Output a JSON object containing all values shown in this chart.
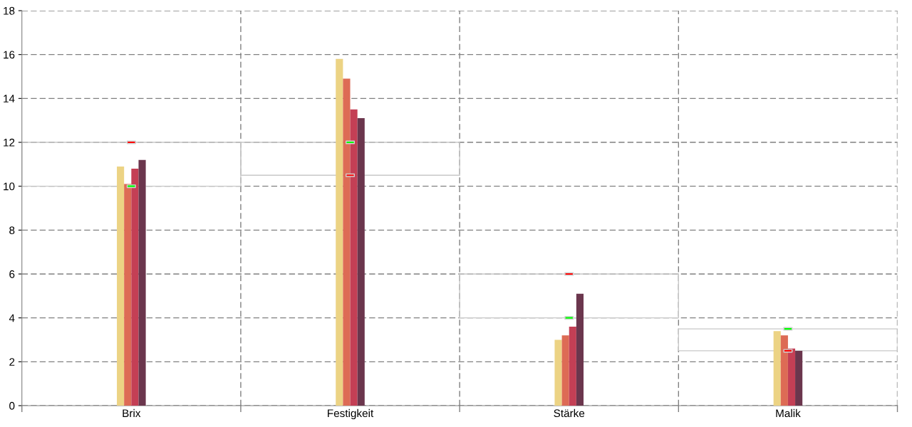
{
  "chart_data": {
    "type": "bar",
    "categories": [
      "Brix",
      "Festigkeit",
      "Stärke",
      "Malik"
    ],
    "series": [
      {
        "color": "#ecd384",
        "values": [
          10.9,
          15.8,
          3.0,
          3.4
        ]
      },
      {
        "color": "#dd6b55",
        "values": [
          10.1,
          14.9,
          3.2,
          3.2
        ]
      },
      {
        "color": "#c43f55",
        "values": [
          10.8,
          13.5,
          3.6,
          2.6
        ]
      },
      {
        "color": "#6b364d",
        "values": [
          11.2,
          13.1,
          5.1,
          2.5
        ]
      },
      {
        "type": "bar",
        "color": "#c8c8c8",
        "base": [
          10,
          10.5,
          4,
          2.5
        ],
        "values": [
          2,
          1.5,
          2,
          1
        ]
      },
      {
        "type": "scatter",
        "marker": "square",
        "color": "#ff0000",
        "x": [
          "Brix",
          "Festigkeit",
          "Stärke",
          "Malik"
        ],
        "values": [
          12,
          10.5,
          6,
          2.5
        ]
      },
      {
        "type": "scatter",
        "marker": "square",
        "color": "#00ff00",
        "x": [
          "Brix",
          "Festigkeit",
          "Stärke",
          "Malik"
        ],
        "values": [
          10,
          12,
          4,
          3.5
        ]
      }
    ],
    "ylim": [
      0,
      18
    ],
    "yticks": [
      0,
      2,
      4,
      6,
      8,
      10,
      12,
      14,
      16,
      18
    ],
    "grid": true,
    "line_style": "dashed"
  }
}
